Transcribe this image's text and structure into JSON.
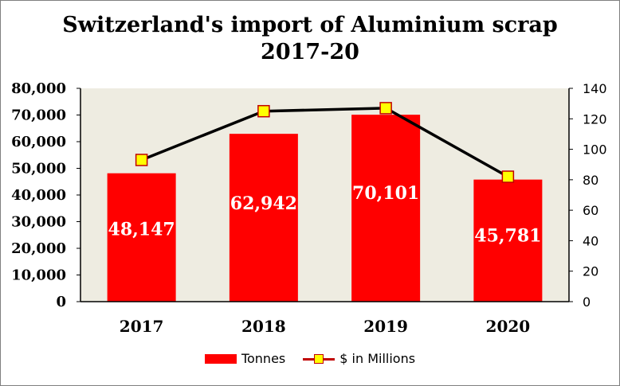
{
  "chart_data": {
    "type": "bar",
    "title_line1": "Switzerland's import of Aluminium scrap",
    "title_line2": "2017-20",
    "categories": [
      "2017",
      "2018",
      "2019",
      "2020"
    ],
    "series": [
      {
        "name": "Tonnes",
        "type": "bar",
        "axis": "left",
        "color": "#ff0000",
        "values": [
          48147,
          62942,
          70101,
          45781
        ],
        "labels": [
          "48,147",
          "62,942",
          "70,101",
          "45,781"
        ]
      },
      {
        "name": "$ in Millions",
        "type": "line",
        "axis": "right",
        "color": "#000000",
        "marker_color": "#ffff00",
        "values": [
          93,
          125,
          127,
          82
        ]
      }
    ],
    "y_left": {
      "ylim": [
        0,
        80000
      ],
      "ticks": [
        "0",
        "10,000",
        "20,000",
        "30,000",
        "40,000",
        "50,000",
        "60,000",
        "70,000",
        "80,000"
      ]
    },
    "y_right": {
      "ylim": [
        0,
        140
      ],
      "ticks": [
        "0",
        "20",
        "40",
        "60",
        "80",
        "100",
        "120",
        "140"
      ]
    },
    "plot_background": "#eeece1",
    "grid": false,
    "legend_position": "bottom"
  }
}
